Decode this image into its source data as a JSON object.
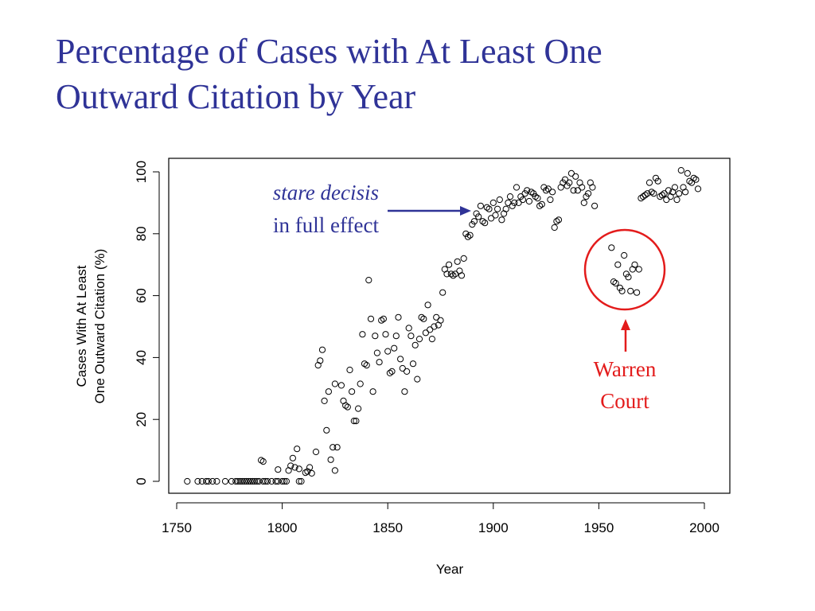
{
  "slide": {
    "title_line1": "Percentage of Cases with At Least One",
    "title_line2": "Outward Citation by Year"
  },
  "colors": {
    "title": "#2f3397",
    "annotation_blue": "#2f3397",
    "annotation_red": "#e31b1b",
    "points": "#000000"
  },
  "chart_data": {
    "type": "scatter",
    "xlabel": "Year",
    "ylabel_line1": "Cases With At Least",
    "ylabel_line2": "One Outward Citation (%)",
    "xlim": [
      1750,
      2000
    ],
    "ylim": [
      0,
      100
    ],
    "xticks": [
      1750,
      1800,
      1850,
      1900,
      1950,
      2000
    ],
    "yticks": [
      0,
      20,
      40,
      60,
      80,
      100
    ],
    "grid": false,
    "legend": "none",
    "annotations": [
      {
        "line1": "stare decisis",
        "line2": "in full effect",
        "style": "blue, arrow pointing right",
        "points_to": [
          1887,
          87
        ]
      },
      {
        "line1": "Warren",
        "line2": "Court",
        "style": "red, circle with upward arrow",
        "circle_center": [
          1963,
          68
        ]
      }
    ],
    "points": [
      [
        1755,
        0
      ],
      [
        1760,
        0
      ],
      [
        1762,
        0
      ],
      [
        1764,
        0
      ],
      [
        1765,
        0
      ],
      [
        1767,
        0
      ],
      [
        1769,
        0
      ],
      [
        1773,
        0
      ],
      [
        1776,
        0
      ],
      [
        1778,
        0
      ],
      [
        1779,
        0
      ],
      [
        1780,
        0
      ],
      [
        1781,
        0
      ],
      [
        1782,
        0
      ],
      [
        1783,
        0
      ],
      [
        1784,
        0
      ],
      [
        1785,
        0
      ],
      [
        1786,
        0
      ],
      [
        1787,
        0
      ],
      [
        1788,
        0
      ],
      [
        1789,
        0
      ],
      [
        1791,
        0
      ],
      [
        1792,
        0
      ],
      [
        1793,
        0
      ],
      [
        1795,
        0
      ],
      [
        1797,
        0
      ],
      [
        1798,
        0
      ],
      [
        1800,
        0
      ],
      [
        1801,
        0
      ],
      [
        1802,
        0
      ],
      [
        1808,
        0
      ],
      [
        1809,
        0
      ],
      [
        1790,
        6.8
      ],
      [
        1791,
        6.4
      ],
      [
        1798,
        3.8
      ],
      [
        1803,
        3.5
      ],
      [
        1804,
        5
      ],
      [
        1805,
        7.5
      ],
      [
        1806,
        4.5
      ],
      [
        1807,
        10.5
      ],
      [
        1808,
        4
      ],
      [
        1811,
        2.8
      ],
      [
        1812,
        3.2
      ],
      [
        1813,
        4.5
      ],
      [
        1814,
        2.6
      ],
      [
        1816,
        9.5
      ],
      [
        1817,
        37.5
      ],
      [
        1818,
        39
      ],
      [
        1819,
        42.5
      ],
      [
        1820,
        26
      ],
      [
        1821,
        16.5
      ],
      [
        1822,
        29
      ],
      [
        1823,
        7
      ],
      [
        1824,
        11
      ],
      [
        1825,
        31.5
      ],
      [
        1825,
        3.5
      ],
      [
        1826,
        11
      ],
      [
        1828,
        31
      ],
      [
        1829,
        26
      ],
      [
        1830,
        24.5
      ],
      [
        1831,
        24
      ],
      [
        1832,
        36
      ],
      [
        1833,
        29
      ],
      [
        1834,
        19.5
      ],
      [
        1835,
        19.5
      ],
      [
        1836,
        23.5
      ],
      [
        1837,
        31.5
      ],
      [
        1838,
        47.5
      ],
      [
        1839,
        38
      ],
      [
        1840,
        37.5
      ],
      [
        1841,
        65
      ],
      [
        1842,
        52.5
      ],
      [
        1843,
        29
      ],
      [
        1844,
        47
      ],
      [
        1845,
        41.5
      ],
      [
        1846,
        38.5
      ],
      [
        1847,
        52
      ],
      [
        1848,
        52.5
      ],
      [
        1849,
        47.5
      ],
      [
        1850,
        42
      ],
      [
        1851,
        35
      ],
      [
        1852,
        35.5
      ],
      [
        1853,
        43
      ],
      [
        1854,
        47
      ],
      [
        1855,
        53
      ],
      [
        1856,
        39.5
      ],
      [
        1857,
        36.5
      ],
      [
        1858,
        29
      ],
      [
        1859,
        35.5
      ],
      [
        1860,
        49.5
      ],
      [
        1861,
        47
      ],
      [
        1862,
        38
      ],
      [
        1863,
        44
      ],
      [
        1864,
        33
      ],
      [
        1865,
        46
      ],
      [
        1866,
        53
      ],
      [
        1867,
        52.5
      ],
      [
        1868,
        48
      ],
      [
        1869,
        57
      ],
      [
        1870,
        49
      ],
      [
        1871,
        46
      ],
      [
        1872,
        50
      ],
      [
        1873,
        53
      ],
      [
        1874,
        50.5
      ],
      [
        1875,
        52
      ],
      [
        1876,
        61
      ],
      [
        1877,
        68.5
      ],
      [
        1878,
        67
      ],
      [
        1879,
        70
      ],
      [
        1880,
        67
      ],
      [
        1881,
        66.5
      ],
      [
        1882,
        67
      ],
      [
        1883,
        71
      ],
      [
        1884,
        68
      ],
      [
        1885,
        66.5
      ],
      [
        1886,
        72
      ],
      [
        1887,
        80
      ],
      [
        1888,
        79
      ],
      [
        1889,
        79.5
      ],
      [
        1890,
        83
      ],
      [
        1891,
        84
      ],
      [
        1892,
        86.5
      ],
      [
        1893,
        85.5
      ],
      [
        1894,
        89
      ],
      [
        1895,
        84
      ],
      [
        1896,
        83.5
      ],
      [
        1897,
        88.5
      ],
      [
        1898,
        88
      ],
      [
        1899,
        85
      ],
      [
        1900,
        90
      ],
      [
        1901,
        86
      ],
      [
        1902,
        88
      ],
      [
        1903,
        91
      ],
      [
        1904,
        84.5
      ],
      [
        1905,
        86.5
      ],
      [
        1906,
        88
      ],
      [
        1907,
        90
      ],
      [
        1908,
        92
      ],
      [
        1909,
        89
      ],
      [
        1910,
        90
      ],
      [
        1911,
        95
      ],
      [
        1912,
        90
      ],
      [
        1913,
        92
      ],
      [
        1914,
        91
      ],
      [
        1915,
        93
      ],
      [
        1916,
        94
      ],
      [
        1917,
        90.5
      ],
      [
        1918,
        93.5
      ],
      [
        1919,
        93
      ],
      [
        1920,
        92
      ],
      [
        1921,
        91.5
      ],
      [
        1922,
        89
      ],
      [
        1923,
        89.5
      ],
      [
        1924,
        95
      ],
      [
        1925,
        94
      ],
      [
        1926,
        94.5
      ],
      [
        1927,
        91
      ],
      [
        1928,
        93.5
      ],
      [
        1929,
        82
      ],
      [
        1930,
        84
      ],
      [
        1931,
        84.5
      ],
      [
        1932,
        95
      ],
      [
        1933,
        96.5
      ],
      [
        1934,
        97.5
      ],
      [
        1935,
        95.5
      ],
      [
        1936,
        96.5
      ],
      [
        1937,
        99.5
      ],
      [
        1938,
        94
      ],
      [
        1939,
        98.5
      ],
      [
        1940,
        94
      ],
      [
        1941,
        96.5
      ],
      [
        1942,
        95
      ],
      [
        1943,
        90
      ],
      [
        1944,
        92
      ],
      [
        1945,
        93
      ],
      [
        1946,
        96.5
      ],
      [
        1947,
        95
      ],
      [
        1948,
        89
      ],
      [
        1956,
        75.5
      ],
      [
        1957,
        64.5
      ],
      [
        1958,
        64
      ],
      [
        1959,
        70
      ],
      [
        1960,
        62.5
      ],
      [
        1961,
        61.5
      ],
      [
        1962,
        73
      ],
      [
        1963,
        67
      ],
      [
        1964,
        66
      ],
      [
        1965,
        61.5
      ],
      [
        1966,
        68.5
      ],
      [
        1967,
        70
      ],
      [
        1968,
        61
      ],
      [
        1969,
        68.5
      ],
      [
        1970,
        91.5
      ],
      [
        1971,
        92
      ],
      [
        1972,
        92.5
      ],
      [
        1973,
        93
      ],
      [
        1974,
        96.5
      ],
      [
        1975,
        93.5
      ],
      [
        1976,
        93
      ],
      [
        1977,
        98
      ],
      [
        1978,
        97
      ],
      [
        1979,
        92
      ],
      [
        1980,
        92.5
      ],
      [
        1981,
        93
      ],
      [
        1982,
        91
      ],
      [
        1983,
        94
      ],
      [
        1984,
        92
      ],
      [
        1985,
        93.5
      ],
      [
        1986,
        95
      ],
      [
        1987,
        91
      ],
      [
        1988,
        93
      ],
      [
        1989,
        100.5
      ],
      [
        1990,
        95
      ],
      [
        1991,
        93.5
      ],
      [
        1992,
        99.5
      ],
      [
        1993,
        97
      ],
      [
        1994,
        96.5
      ],
      [
        1995,
        98
      ],
      [
        1996,
        97.5
      ],
      [
        1997,
        94.5
      ]
    ]
  }
}
